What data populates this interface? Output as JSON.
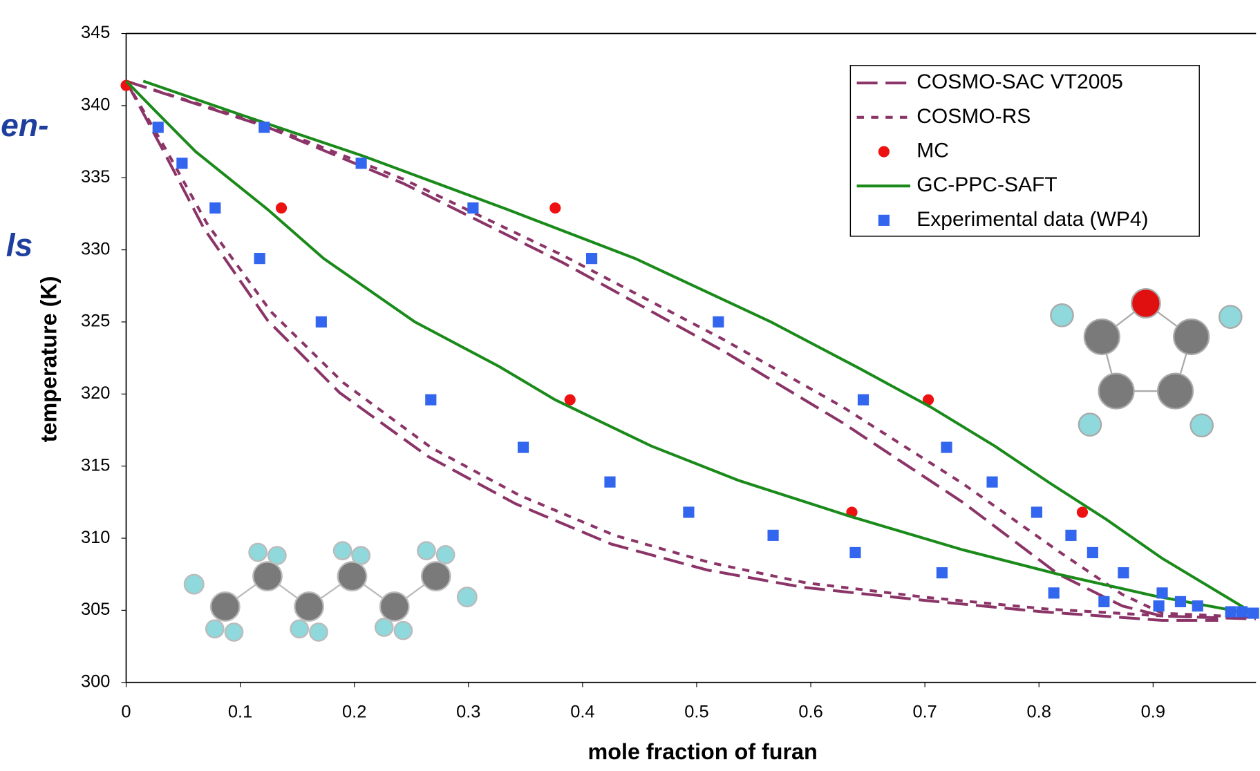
{
  "chart_data": {
    "type": "line",
    "annotations": [
      "en-",
      "ls"
    ],
    "x_label": "mole fraction of furan",
    "y_label": "temperature (K)",
    "xlim": [
      0,
      1
    ],
    "ylim": [
      300,
      345
    ],
    "xticks": [
      0,
      0.1,
      0.2,
      0.3,
      0.4,
      0.5,
      0.6,
      0.7,
      0.8,
      0.9
    ],
    "yticks": [
      300,
      305,
      310,
      315,
      320,
      325,
      330,
      335,
      340,
      345
    ],
    "legend": "upper right",
    "series": [
      {
        "name": "COSMO-SAC VT2005",
        "color": "#8b3467",
        "style": "dashed",
        "x": [
          0,
          0.033,
          0.068,
          0.124,
          0.187,
          0.264,
          0.341,
          0.425,
          0.509,
          0.593,
          0.698,
          0.803,
          0.908,
          0.957,
          null,
          0,
          0.124,
          0.243,
          0.383,
          0.523,
          0.628,
          0.733,
          0.817,
          0.873,
          0.908,
          0.99
        ],
        "values": [
          341.7,
          336.8,
          331.5,
          325.1,
          320.1,
          315.7,
          312.4,
          309.6,
          307.8,
          306.6,
          305.7,
          304.9,
          304.3,
          304.3,
          null,
          341.7,
          338.5,
          334.6,
          329.1,
          323.0,
          318.0,
          312.5,
          307.5,
          305.3,
          304.6,
          304.4
        ]
      },
      {
        "name": "COSMO-RS",
        "color": "#8b3467",
        "style": "dotted",
        "x": [
          0,
          0.036,
          0.071,
          0.127,
          0.19,
          0.267,
          0.344,
          0.428,
          0.512,
          0.596,
          0.701,
          0.806,
          0.911,
          0.957,
          null,
          0,
          0.124,
          0.243,
          0.383,
          0.523,
          0.628,
          0.733,
          0.817,
          0.873,
          0.908,
          0.99
        ],
        "values": [
          341.7,
          336.8,
          331.8,
          325.7,
          320.8,
          316.3,
          313.0,
          310.2,
          308.3,
          306.9,
          305.9,
          305.1,
          304.6,
          304.5,
          null,
          341.7,
          338.6,
          334.9,
          329.6,
          323.8,
          319.1,
          313.8,
          309.1,
          306.1,
          304.8,
          304.5
        ]
      },
      {
        "name": "MC",
        "color": "#ee1111",
        "style": "circle",
        "x": [
          0,
          0.136,
          0.376,
          0.389,
          0.703,
          0.636,
          0.838
        ],
        "values": [
          341.4,
          332.9,
          332.9,
          319.6,
          319.6,
          311.8,
          311.8
        ]
      },
      {
        "name": "GC-PPC-SAFT",
        "color": "#1a8a1a",
        "style": "solid",
        "x": [
          0,
          0.026,
          0.061,
          0.124,
          0.173,
          0.253,
          0.327,
          0.376,
          0.46,
          0.537,
          0.635,
          0.733,
          0.817,
          0.901,
          0.99,
          null,
          0.015,
          0.103,
          0.208,
          0.334,
          0.446,
          0.565,
          0.642,
          0.705,
          0.761,
          0.81,
          0.859,
          0.908,
          0.99
        ],
        "values": [
          341.7,
          339.6,
          336.8,
          332.8,
          329.4,
          325.0,
          321.9,
          319.6,
          316.4,
          314.0,
          311.5,
          309.2,
          307.5,
          306.0,
          304.7,
          null,
          341.7,
          339.3,
          336.5,
          332.8,
          329.4,
          325.0,
          321.8,
          319.1,
          316.4,
          313.8,
          311.3,
          308.6,
          304.7
        ]
      },
      {
        "name": "Experimental data (WP4)",
        "color": "#3366ee",
        "style": "square",
        "x": [
          0.028,
          0.049,
          0.078,
          0.117,
          0.171,
          0.267,
          0.348,
          0.424,
          0.493,
          0.567,
          0.639,
          0.715,
          0.813,
          0.857,
          0.905,
          0.968,
          0.121,
          0.206,
          0.304,
          0.408,
          0.519,
          0.646,
          0.719,
          0.759,
          0.798,
          0.828,
          0.847,
          0.874,
          0.908,
          0.924,
          0.939,
          0.978,
          0.988
        ],
        "values": [
          338.5,
          336.0,
          332.9,
          329.4,
          325.0,
          319.6,
          316.3,
          313.9,
          311.8,
          310.2,
          309.0,
          307.6,
          306.2,
          305.6,
          305.3,
          304.9,
          338.5,
          336.0,
          332.9,
          329.4,
          325.0,
          319.6,
          316.3,
          313.9,
          311.8,
          310.2,
          309.0,
          307.6,
          306.2,
          305.6,
          305.3,
          304.9,
          304.8
        ]
      }
    ]
  }
}
